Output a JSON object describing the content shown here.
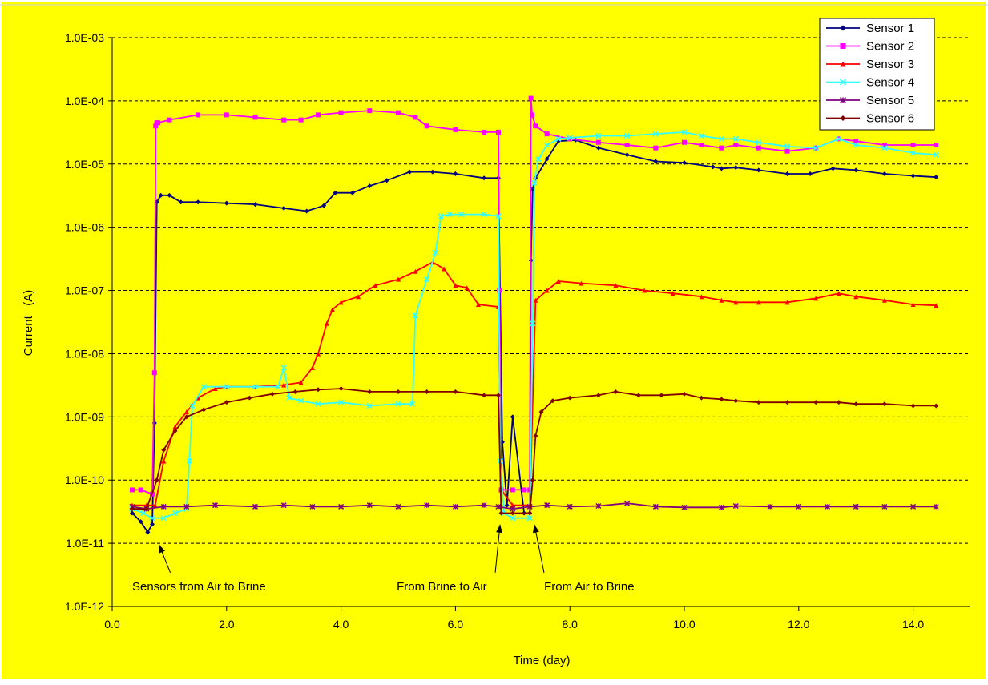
{
  "colors": {
    "background": "#ffff00",
    "frame": "#cfcfcf",
    "axis": "#000000",
    "grid": "#000000"
  },
  "chart_data": {
    "type": "line",
    "xlabel": "Time  (day)",
    "ylabel": "Current   (A)",
    "xlim": [
      0,
      15
    ],
    "ylim": [
      1e-12,
      0.001
    ],
    "y_scale": "log",
    "grid": "horizontal dashed",
    "legend_placement": "top-right",
    "x_ticks": [
      {
        "value": 0,
        "label": "0.0"
      },
      {
        "value": 2,
        "label": "2.0"
      },
      {
        "value": 4,
        "label": "4.0"
      },
      {
        "value": 6,
        "label": "6.0"
      },
      {
        "value": 8,
        "label": "8.0"
      },
      {
        "value": 10,
        "label": "10.0"
      },
      {
        "value": 12,
        "label": "12.0"
      },
      {
        "value": 14,
        "label": "14.0"
      }
    ],
    "y_ticks": [
      {
        "value": 0.001,
        "label": "1.0E-03"
      },
      {
        "value": 0.0001,
        "label": "1.0E-04"
      },
      {
        "value": 1e-05,
        "label": "1.0E-05"
      },
      {
        "value": 1e-06,
        "label": "1.0E-06"
      },
      {
        "value": 1e-07,
        "label": "1.0E-07"
      },
      {
        "value": 1e-08,
        "label": "1.0E-08"
      },
      {
        "value": 1e-09,
        "label": "1.0E-09"
      },
      {
        "value": 1e-10,
        "label": "1.0E-10"
      },
      {
        "value": 1e-11,
        "label": "1.0E-11"
      },
      {
        "value": 1e-12,
        "label": "1.0E-12"
      }
    ],
    "series": [
      {
        "name": "Sensor 1",
        "color": "#000080",
        "marker": "diamond",
        "x": [
          0.35,
          0.5,
          0.62,
          0.7,
          0.74,
          0.78,
          0.85,
          1.0,
          1.2,
          1.5,
          2.0,
          2.5,
          3.0,
          3.4,
          3.7,
          3.9,
          4.2,
          4.5,
          4.8,
          5.2,
          5.6,
          6.0,
          6.5,
          6.75,
          6.78,
          6.82,
          6.9,
          7.0,
          7.2,
          7.3,
          7.32,
          7.35,
          7.4,
          7.6,
          7.8,
          8.1,
          8.5,
          9.0,
          9.5,
          10.0,
          10.5,
          10.65,
          10.9,
          11.3,
          11.8,
          12.2,
          12.6,
          13.0,
          13.5,
          14.0,
          14.4
        ],
        "y": [
          3e-11,
          2.2e-11,
          1.5e-11,
          2e-11,
          8e-10,
          2.5e-06,
          3.2e-06,
          3.2e-06,
          2.5e-06,
          2.5e-06,
          2.4e-06,
          2.3e-06,
          2e-06,
          1.8e-06,
          2.2e-06,
          3.5e-06,
          3.5e-06,
          4.5e-06,
          5.5e-06,
          7.5e-06,
          7.5e-06,
          7e-06,
          6e-06,
          6e-06,
          1e-07,
          4e-10,
          4e-11,
          1e-09,
          3e-11,
          3e-11,
          3e-07,
          4e-06,
          6e-06,
          1.2e-05,
          2.3e-05,
          2.4e-05,
          1.8e-05,
          1.4e-05,
          1.1e-05,
          1.05e-05,
          9e-06,
          8.5e-06,
          8.8e-06,
          8e-06,
          7e-06,
          7e-06,
          8.5e-06,
          8e-06,
          7e-06,
          6.5e-06,
          6.2e-06
        ]
      },
      {
        "name": "Sensor 2",
        "color": "#ff00ff",
        "marker": "square",
        "x": [
          0.35,
          0.5,
          0.7,
          0.74,
          0.76,
          0.78,
          0.8,
          1.0,
          1.5,
          2.0,
          2.5,
          3.0,
          3.3,
          3.6,
          4.0,
          4.5,
          5.0,
          5.3,
          5.5,
          6.0,
          6.5,
          6.75,
          6.77,
          6.8,
          7.0,
          7.2,
          7.3,
          7.32,
          7.34,
          7.4,
          7.6,
          8.0,
          8.5,
          9.0,
          9.5,
          10.0,
          10.3,
          10.65,
          10.9,
          11.3,
          11.8,
          12.3,
          12.7,
          13.0,
          13.5,
          14.0,
          14.4
        ],
        "y": [
          7e-11,
          7e-11,
          6e-11,
          5e-09,
          4e-05,
          4.5e-05,
          4.5e-05,
          5e-05,
          6e-05,
          6e-05,
          5.5e-05,
          5e-05,
          5e-05,
          6e-05,
          6.5e-05,
          7e-05,
          6.5e-05,
          5.5e-05,
          4e-05,
          3.5e-05,
          3.2e-05,
          3.2e-05,
          1e-07,
          7e-11,
          7e-11,
          7e-11,
          7e-11,
          0.00011,
          6e-05,
          4e-05,
          3e-05,
          2.5e-05,
          2.2e-05,
          2e-05,
          1.8e-05,
          2.2e-05,
          2e-05,
          1.8e-05,
          2e-05,
          1.8e-05,
          1.6e-05,
          1.8e-05,
          2.5e-05,
          2.3e-05,
          2e-05,
          2e-05,
          2e-05
        ]
      },
      {
        "name": "Sensor 3",
        "color": "#ff0000",
        "marker": "triangle",
        "x": [
          0.35,
          0.6,
          0.75,
          0.9,
          1.1,
          1.3,
          1.5,
          1.8,
          2.0,
          2.5,
          3.0,
          3.3,
          3.5,
          3.6,
          3.75,
          3.85,
          4.0,
          4.3,
          4.6,
          5.0,
          5.3,
          5.6,
          5.8,
          6.0,
          6.2,
          6.4,
          6.75,
          6.8,
          7.0,
          7.3,
          7.4,
          7.6,
          7.8,
          8.2,
          8.8,
          9.3,
          9.8,
          10.3,
          10.65,
          10.9,
          11.3,
          11.8,
          12.3,
          12.7,
          13.0,
          13.5,
          14.0,
          14.4
        ],
        "y": [
          4e-11,
          4e-11,
          4e-11,
          2e-10,
          7e-10,
          1.2e-09,
          2e-09,
          2.8e-09,
          3e-09,
          3e-09,
          3.2e-09,
          3.5e-09,
          6e-09,
          1e-08,
          3e-08,
          5e-08,
          6.5e-08,
          8e-08,
          1.2e-07,
          1.5e-07,
          2e-07,
          2.8e-07,
          2.2e-07,
          1.2e-07,
          1.1e-07,
          6e-08,
          5.5e-08,
          7e-11,
          4e-11,
          4e-11,
          7e-08,
          1e-07,
          1.4e-07,
          1.3e-07,
          1.2e-07,
          1e-07,
          9e-08,
          8e-08,
          7e-08,
          6.5e-08,
          6.5e-08,
          6.5e-08,
          7.5e-08,
          9e-08,
          8e-08,
          7e-08,
          6e-08,
          5.8e-08
        ]
      },
      {
        "name": "Sensor 4",
        "color": "#33ffff",
        "marker": "cross",
        "x": [
          0.35,
          0.55,
          0.7,
          0.9,
          1.1,
          1.3,
          1.35,
          1.4,
          1.6,
          2.0,
          2.5,
          2.9,
          3.0,
          3.1,
          3.3,
          3.6,
          4.0,
          4.5,
          5.0,
          5.25,
          5.3,
          5.5,
          5.65,
          5.75,
          5.9,
          6.1,
          6.5,
          6.75,
          6.78,
          6.85,
          7.0,
          7.3,
          7.35,
          7.38,
          7.45,
          7.6,
          7.8,
          8.0,
          8.5,
          9.0,
          9.5,
          10.0,
          10.3,
          10.65,
          10.9,
          11.3,
          11.8,
          12.3,
          12.7,
          13.0,
          13.5,
          14.0,
          14.4
        ],
        "y": [
          3.5e-11,
          3e-11,
          2.5e-11,
          2.5e-11,
          3e-11,
          3.5e-11,
          2e-10,
          1.5e-09,
          3e-09,
          3e-09,
          3e-09,
          3e-09,
          6e-09,
          2e-09,
          1.8e-09,
          1.6e-09,
          1.7e-09,
          1.5e-09,
          1.6e-09,
          1.6e-09,
          4e-08,
          1.5e-07,
          4e-07,
          1.5e-06,
          1.6e-06,
          1.6e-06,
          1.6e-06,
          1.5e-06,
          2e-10,
          3e-11,
          2.5e-11,
          2.5e-11,
          3e-08,
          5e-06,
          1.2e-05,
          2e-05,
          2.5e-05,
          2.6e-05,
          2.8e-05,
          2.8e-05,
          3e-05,
          3.2e-05,
          2.8e-05,
          2.5e-05,
          2.5e-05,
          2.2e-05,
          1.9e-05,
          1.8e-05,
          2.5e-05,
          2e-05,
          1.8e-05,
          1.5e-05,
          1.4e-05
        ]
      },
      {
        "name": "Sensor 5",
        "color": "#800080",
        "marker": "star",
        "x": [
          0.35,
          0.6,
          0.9,
          1.3,
          1.8,
          2.5,
          3.0,
          3.5,
          4.0,
          4.5,
          5.0,
          5.5,
          6.0,
          6.5,
          6.75,
          7.0,
          7.3,
          7.6,
          8.0,
          8.5,
          9.0,
          9.5,
          10.0,
          10.65,
          10.9,
          11.5,
          12.0,
          12.5,
          13.0,
          13.5,
          14.0,
          14.4
        ],
        "y": [
          3.8e-11,
          3.5e-11,
          3.8e-11,
          3.8e-11,
          4e-11,
          3.8e-11,
          4e-11,
          3.8e-11,
          3.8e-11,
          4e-11,
          3.8e-11,
          4e-11,
          3.8e-11,
          4e-11,
          3.8e-11,
          3.5e-11,
          3.8e-11,
          4e-11,
          3.8e-11,
          3.9e-11,
          4.3e-11,
          3.8e-11,
          3.7e-11,
          3.7e-11,
          3.9e-11,
          3.8e-11,
          3.8e-11,
          3.8e-11,
          3.8e-11,
          3.8e-11,
          3.8e-11,
          3.8e-11
        ]
      },
      {
        "name": "Sensor 6",
        "color": "#800000",
        "marker": "diamond",
        "x": [
          0.35,
          0.6,
          0.78,
          0.9,
          1.1,
          1.3,
          1.6,
          2.0,
          2.4,
          2.8,
          3.2,
          3.6,
          4.0,
          4.5,
          5.0,
          5.5,
          6.0,
          6.5,
          6.75,
          6.8,
          7.0,
          7.3,
          7.35,
          7.4,
          7.5,
          7.7,
          8.0,
          8.5,
          8.8,
          9.2,
          9.6,
          10.0,
          10.3,
          10.65,
          10.9,
          11.3,
          11.8,
          12.3,
          12.7,
          13.0,
          13.5,
          14.0,
          14.4
        ],
        "y": [
          3.5e-11,
          3.5e-11,
          1e-10,
          3e-10,
          6e-10,
          1e-09,
          1.3e-09,
          1.7e-09,
          2e-09,
          2.3e-09,
          2.5e-09,
          2.7e-09,
          2.8e-09,
          2.5e-09,
          2.5e-09,
          2.5e-09,
          2.5e-09,
          2.2e-09,
          2.2e-09,
          3e-11,
          3e-11,
          3e-11,
          1e-10,
          5e-10,
          1.2e-09,
          1.8e-09,
          2e-09,
          2.2e-09,
          2.5e-09,
          2.2e-09,
          2.2e-09,
          2.3e-09,
          2e-09,
          1.9e-09,
          1.8e-09,
          1.7e-09,
          1.7e-09,
          1.7e-09,
          1.7e-09,
          1.6e-09,
          1.6e-09,
          1.5e-09,
          1.5e-09
        ]
      }
    ],
    "annotations": [
      {
        "text": "Sensors from Air to Brine",
        "target_x": 0.82,
        "target_y": 1.2e-11,
        "text_x": 0.35,
        "text_y": 1.8e-12,
        "anchor": "start"
      },
      {
        "text": "From Brine to Air",
        "target_x": 6.78,
        "target_y": 2.5e-11,
        "text_x": 6.55,
        "text_y": 1.8e-12,
        "anchor": "end"
      },
      {
        "text": "From Air to Brine",
        "target_x": 7.38,
        "target_y": 2.5e-11,
        "text_x": 7.55,
        "text_y": 1.8e-12,
        "anchor": "start"
      }
    ]
  }
}
